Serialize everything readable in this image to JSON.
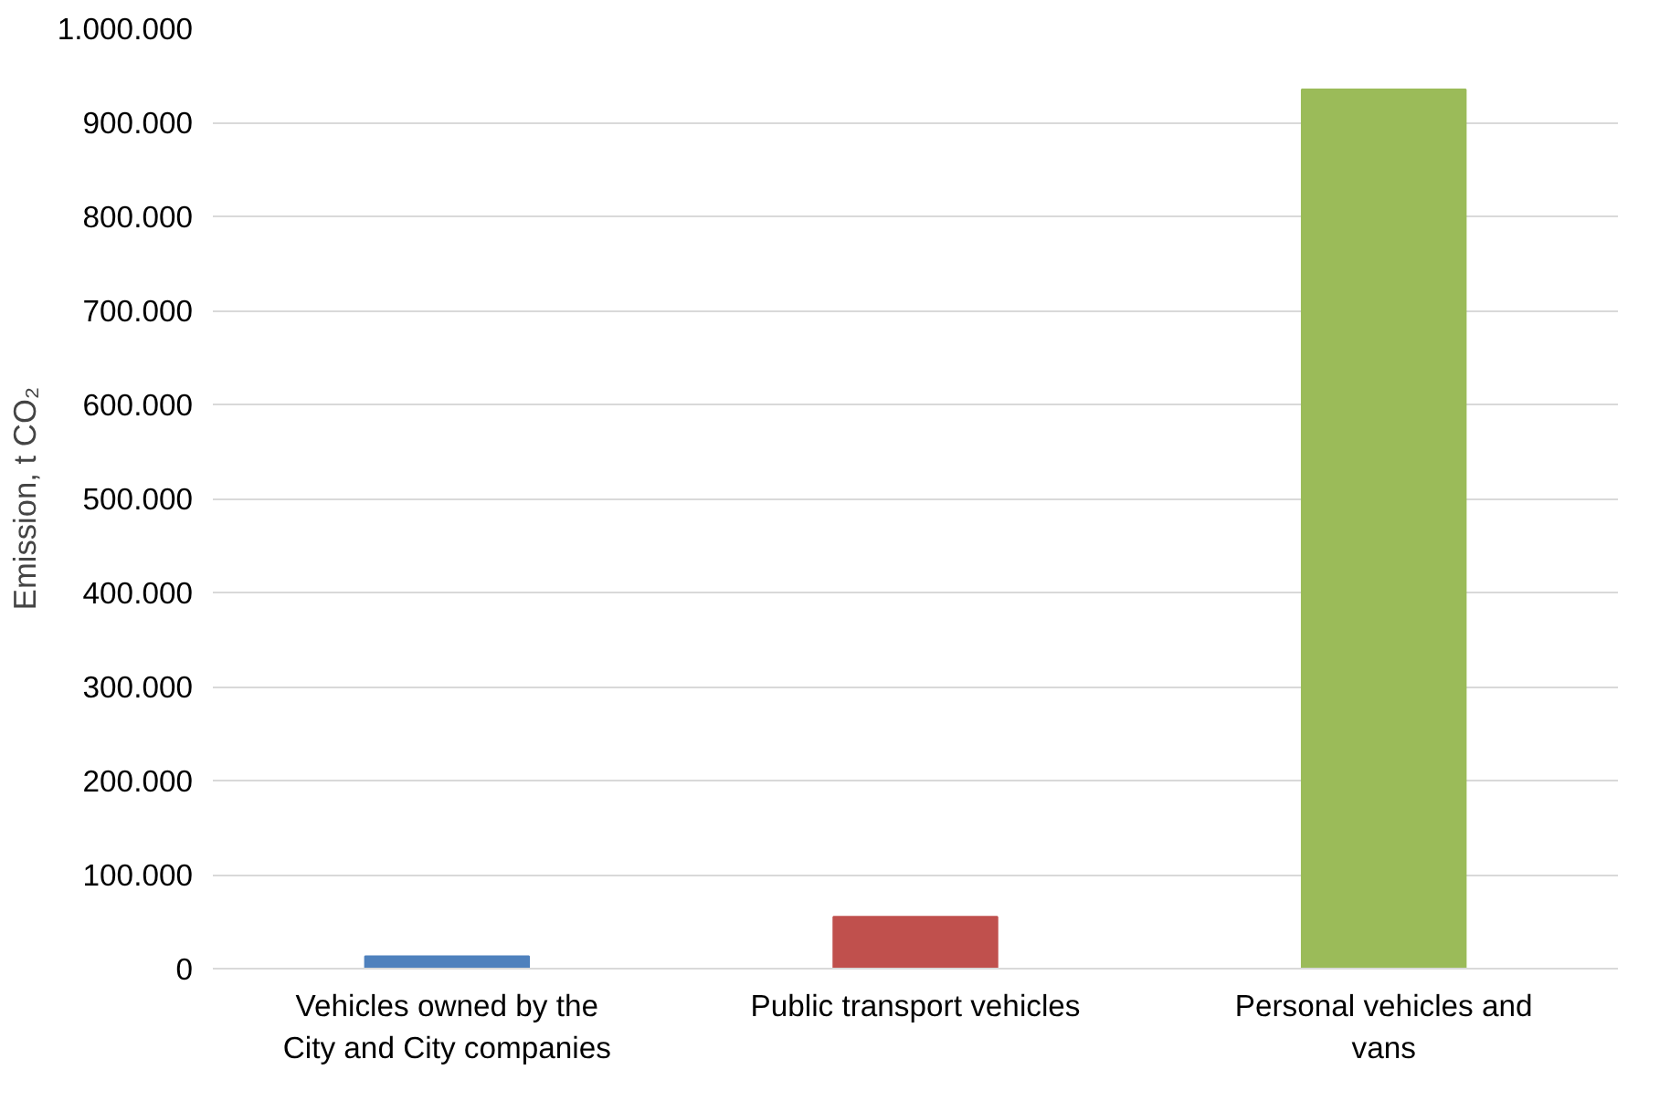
{
  "chart_data": {
    "type": "bar",
    "ylabel": "Emission, t CO₂",
    "categories": [
      "Vehicles owned by the City and City companies",
      "Public transport vehicles",
      "Personal vehicles and vans"
    ],
    "values": [
      13000,
      55000,
      935000
    ],
    "colors": [
      "#4f81bd",
      "#c0504d",
      "#9bbb59"
    ],
    "ylim": [
      0,
      1000000
    ],
    "yticks": [
      {
        "value": 0,
        "label": "0"
      },
      {
        "value": 100000,
        "label": "100.000"
      },
      {
        "value": 200000,
        "label": "200.000"
      },
      {
        "value": 300000,
        "label": "300.000"
      },
      {
        "value": 400000,
        "label": "400.000"
      },
      {
        "value": 500000,
        "label": "500.000"
      },
      {
        "value": 600000,
        "label": "600.000"
      },
      {
        "value": 700000,
        "label": "700.000"
      },
      {
        "value": 800000,
        "label": "800.000"
      },
      {
        "value": 900000,
        "label": "900.000"
      },
      {
        "value": 1000000,
        "label": "1.000.000"
      }
    ],
    "grid": "y"
  }
}
